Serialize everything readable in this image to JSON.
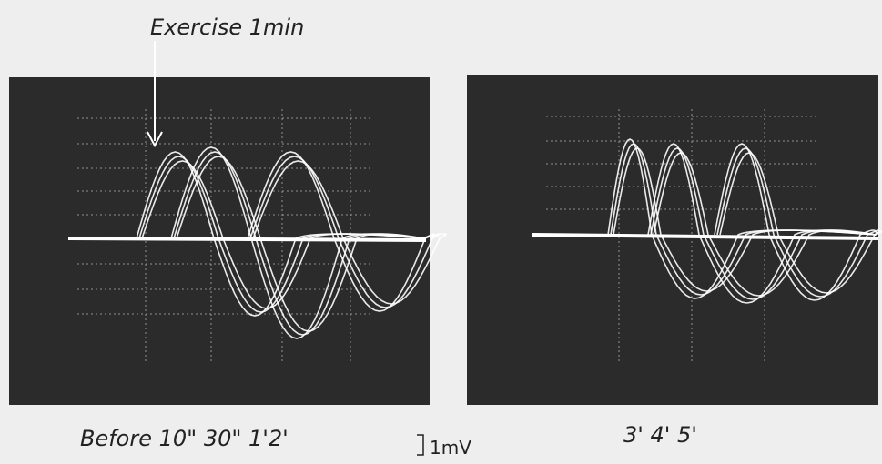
{
  "annotation": "Exercise 1min",
  "panels": [
    {
      "caption": "Before 10\" 30\" 1'2'"
    },
    {
      "caption": "3' 4' 5'"
    }
  ],
  "scale_bar": "1mV"
}
